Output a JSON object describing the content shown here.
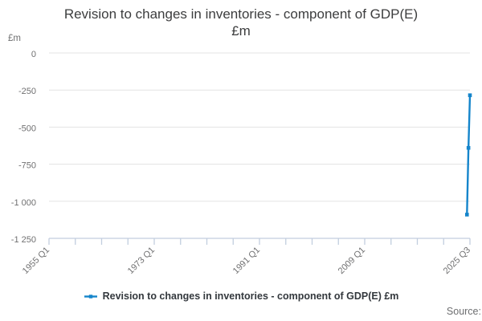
{
  "page": {
    "title_line1": "Revision to changes in inventories - component of GDP(E)",
    "title_line2": "£m",
    "unit_label": "£m",
    "source_label": "Source:"
  },
  "legend": {
    "label": "Revision to changes in inventories - component of GDP(E) £m"
  },
  "colors": {
    "line": "#1585cb",
    "grid": "#e3e3e3",
    "axis": "#c2cedf",
    "tick_text": "#707071",
    "title_text": "#3c3d3e",
    "source_text": "#6d6e70"
  },
  "chart_data": {
    "type": "line",
    "title": "Revision to changes in inventories - component of GDP(E) £m",
    "ylabel": "£m",
    "ylim": [
      -1250,
      0
    ],
    "y_ticks": [
      0,
      -250,
      -500,
      -750,
      -1000,
      -1250
    ],
    "y_tick_labels": [
      "0",
      "-250",
      "-500",
      "-750",
      "-1 000",
      "-1 250"
    ],
    "x_axis": {
      "start": "1955 Q1",
      "end": "2025 Q3",
      "minor_tick_count": 17
    },
    "x_tick_labels": [
      "1955 Q1",
      "1973 Q1",
      "1991 Q1",
      "2009 Q1",
      "2025 Q3"
    ],
    "grid": "horizontal",
    "legend_position": "bottom",
    "series": [
      {
        "name": "Revision to changes in inventories - component of GDP(E) £m",
        "points": [
          {
            "x": "2025 Q1",
            "y": -1090
          },
          {
            "x": "2025 Q2",
            "y": -640
          },
          {
            "x": "2025 Q3",
            "y": -285
          }
        ]
      }
    ]
  }
}
